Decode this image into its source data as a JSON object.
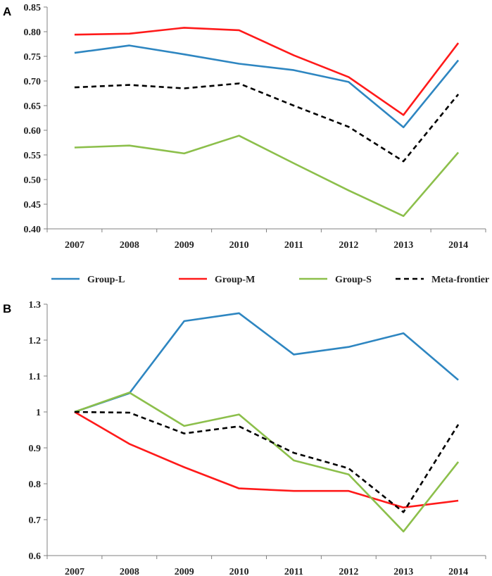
{
  "chart_data": [
    {
      "type": "line",
      "panel_label": "A",
      "title": "",
      "xlabel": "",
      "ylabel": "",
      "categories": [
        "2007",
        "2008",
        "2009",
        "2010",
        "2011",
        "2012",
        "2013",
        "2014"
      ],
      "ylim": [
        0.4,
        0.85
      ],
      "yticks": [
        "0.40",
        "0.45",
        "0.50",
        "0.55",
        "0.60",
        "0.65",
        "0.70",
        "0.75",
        "0.80",
        "0.85"
      ],
      "series": [
        {
          "name": "Group-L",
          "color": "#2E86C1",
          "dashed": false,
          "values": [
            0.757,
            0.772,
            0.754,
            0.735,
            0.722,
            0.698,
            0.606,
            0.742
          ]
        },
        {
          "name": "Group-M",
          "color": "#FF1A1A",
          "dashed": false,
          "values": [
            0.794,
            0.796,
            0.808,
            0.803,
            0.752,
            0.708,
            0.631,
            0.777
          ]
        },
        {
          "name": "Group-S",
          "color": "#8CBF4B",
          "dashed": false,
          "values": [
            0.565,
            0.569,
            0.553,
            0.589,
            0.533,
            0.478,
            0.426,
            0.555
          ]
        },
        {
          "name": "Meta-frontier",
          "color": "#000000",
          "dashed": true,
          "values": [
            0.687,
            0.692,
            0.685,
            0.695,
            0.65,
            0.607,
            0.537,
            0.673
          ]
        }
      ]
    },
    {
      "type": "line",
      "panel_label": "B",
      "title": "",
      "xlabel": "",
      "ylabel": "",
      "categories": [
        "2007",
        "2008",
        "2009",
        "2010",
        "2011",
        "2012",
        "2013",
        "2014"
      ],
      "ylim": [
        0.6,
        1.3
      ],
      "yticks": [
        "0.6",
        "0.7",
        "0.8",
        "0.9",
        "1",
        "1.1",
        "1.2",
        "1.3"
      ],
      "series": [
        {
          "name": "Group-L",
          "color": "#2E86C1",
          "dashed": false,
          "values": [
            1.0,
            1.052,
            1.253,
            1.275,
            1.16,
            1.181,
            1.219,
            1.089
          ]
        },
        {
          "name": "Group-M",
          "color": "#FF1A1A",
          "dashed": false,
          "values": [
            1.0,
            0.911,
            0.846,
            0.787,
            0.78,
            0.78,
            0.734,
            0.753
          ]
        },
        {
          "name": "Group-S",
          "color": "#8CBF4B",
          "dashed": false,
          "values": [
            1.0,
            1.054,
            0.961,
            0.993,
            0.865,
            0.826,
            0.667,
            0.861
          ]
        },
        {
          "name": "Meta-frontier",
          "color": "#000000",
          "dashed": true,
          "values": [
            1.0,
            0.998,
            0.94,
            0.96,
            0.886,
            0.843,
            0.721,
            0.965
          ]
        }
      ]
    }
  ],
  "legend": [
    {
      "label": "Group-L",
      "color": "#2E86C1",
      "dashed": false
    },
    {
      "label": "Group-M",
      "color": "#FF1A1A",
      "dashed": false
    },
    {
      "label": "Group-S",
      "color": "#8CBF4B",
      "dashed": false
    },
    {
      "label": "Meta-frontier",
      "color": "#000000",
      "dashed": true
    }
  ]
}
